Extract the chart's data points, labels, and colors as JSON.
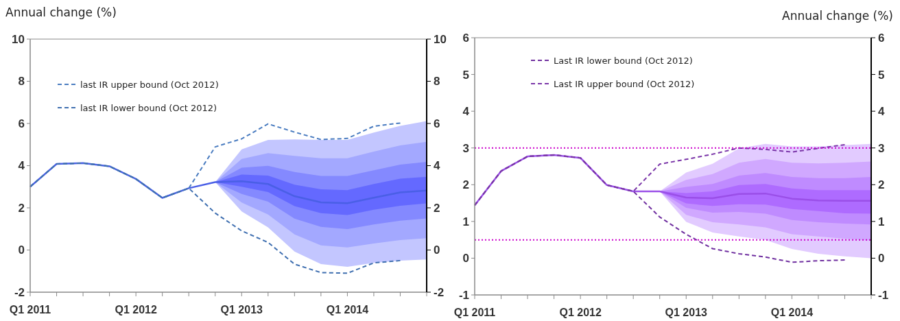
{
  "chart_data": [
    {
      "type": "line",
      "ylabel": "Annual change (%)",
      "categories": [
        "Q1 2011",
        null,
        null,
        null,
        "Q1 2012",
        null,
        null,
        null,
        "Q1 2013",
        null,
        null,
        null,
        "Q1 2014",
        null,
        null,
        null
      ],
      "ylim": [
        -2,
        10
      ],
      "yticks": [
        -2,
        0,
        2,
        4,
        6,
        8,
        10
      ],
      "y2lim": [
        -2,
        10
      ],
      "y2ticks": [
        -2,
        0,
        2,
        4,
        6,
        8,
        10
      ],
      "legend": "top left",
      "grid": false,
      "series": [
        {
          "type": "line",
          "color": "#c3c6ff",
          "values": [
            null,
            null,
            null,
            null,
            null,
            null,
            null,
            null,
            null,
            null,
            null,
            null,
            null,
            null,
            null,
            null
          ],
          "upper": [
            null,
            null,
            null,
            null,
            null,
            null,
            null,
            3.22,
            4.77,
            5.22,
            5.24,
            5.22,
            5.22,
            5.57,
            5.89,
            6.11
          ],
          "lower": [
            null,
            null,
            null,
            null,
            null,
            null,
            null,
            3.22,
            1.83,
            1.07,
            -0.07,
            -0.67,
            -0.8,
            -0.61,
            -0.5,
            -0.45
          ]
        },
        {
          "type": "line",
          "color": "#a3a8ff",
          "values": [
            null,
            null,
            null,
            null,
            null,
            null,
            null,
            null,
            null,
            null,
            null,
            null,
            null,
            null,
            null,
            null
          ],
          "upper": [
            null,
            null,
            null,
            null,
            null,
            null,
            null,
            3.22,
            4.32,
            4.59,
            4.46,
            4.35,
            4.35,
            4.67,
            4.96,
            5.13
          ],
          "lower": [
            null,
            null,
            null,
            null,
            null,
            null,
            null,
            3.22,
            2.25,
            1.68,
            0.74,
            0.22,
            0.12,
            0.31,
            0.47,
            0.56
          ]
        },
        {
          "type": "line",
          "color": "#8489ff",
          "values": [
            null,
            null,
            null,
            null,
            null,
            null,
            null,
            null,
            null,
            null,
            null,
            null,
            null,
            null,
            null,
            null
          ],
          "upper": [
            null,
            null,
            null,
            null,
            null,
            null,
            null,
            3.22,
            3.9,
            3.99,
            3.7,
            3.51,
            3.51,
            3.78,
            4.05,
            4.18
          ],
          "lower": [
            null,
            null,
            null,
            null,
            null,
            null,
            null,
            3.22,
            2.66,
            2.29,
            1.49,
            1.1,
            0.99,
            1.21,
            1.39,
            1.5
          ]
        },
        {
          "type": "line",
          "color": "#6469ff",
          "values": [
            null,
            null,
            null,
            null,
            null,
            null,
            null,
            null,
            null,
            null,
            null,
            null,
            null,
            null,
            null,
            null
          ],
          "upper": [
            null,
            null,
            null,
            null,
            null,
            null,
            null,
            3.22,
            3.58,
            3.53,
            3.1,
            2.88,
            2.84,
            3.13,
            3.38,
            3.47
          ],
          "lower": [
            null,
            null,
            null,
            null,
            null,
            null,
            null,
            3.22,
            3.0,
            2.75,
            2.08,
            1.75,
            1.66,
            1.91,
            2.1,
            2.21
          ]
        },
        {
          "type": "line",
          "color": "#4a5fe6",
          "values": [
            3.0,
            4.08,
            4.12,
            3.97,
            3.37,
            2.47,
            2.93,
            3.22,
            3.26,
            3.13,
            2.55,
            2.26,
            2.22,
            2.48,
            2.73,
            2.82
          ]
        },
        {
          "type": "line",
          "name": "last IR upper bound (Oct 2012)",
          "color": "#4a7cc0",
          "line_style": "dashed",
          "values": [
            3.0,
            4.08,
            4.12,
            3.97,
            3.37,
            2.47,
            2.93,
            4.89,
            5.27,
            5.98,
            5.59,
            5.24,
            5.29,
            5.87,
            6.02,
            null
          ]
        },
        {
          "type": "line",
          "name": "last IR lower bound (Oct 2012)",
          "color": "#3f6fb0",
          "line_style": "dashed",
          "values": [
            3.0,
            4.08,
            4.12,
            3.97,
            3.37,
            2.47,
            2.93,
            1.75,
            0.91,
            0.36,
            -0.67,
            -1.07,
            -1.1,
            -0.61,
            -0.5,
            null
          ]
        }
      ]
    },
    {
      "type": "line",
      "y2label": "Annual change (%)",
      "categories": [
        "Q1 2011",
        null,
        null,
        null,
        "Q1 2012",
        null,
        null,
        null,
        "Q1 2013",
        null,
        null,
        null,
        "Q1 2014",
        null,
        null,
        null
      ],
      "ylim": [
        -1,
        6
      ],
      "yticks": [
        -1,
        0,
        1,
        2,
        3,
        4,
        5,
        6
      ],
      "y2lim": [
        -1,
        6
      ],
      "y2ticks": [
        -1,
        0,
        1,
        2,
        3,
        4,
        5,
        6
      ],
      "legend": "top left",
      "grid": false,
      "ref_lines": [
        {
          "axis": "y",
          "value": 3,
          "color": "#cc00cc",
          "line_style": "dotted"
        },
        {
          "axis": "y",
          "value": 0.5,
          "color": "#cc00cc",
          "line_style": "dotted"
        }
      ],
      "series": [
        {
          "type": "line",
          "color": "#e2cbff",
          "values": [
            null,
            null,
            null,
            null,
            null,
            null,
            null,
            null,
            null,
            null,
            null,
            null,
            null,
            null,
            null,
            null
          ],
          "upper": [
            null,
            null,
            null,
            null,
            null,
            null,
            null,
            1.82,
            2.33,
            2.57,
            2.99,
            3.11,
            3.04,
            3.04,
            3.08,
            3.11
          ],
          "lower": [
            null,
            null,
            null,
            null,
            null,
            null,
            null,
            1.82,
            0.99,
            0.7,
            0.59,
            0.5,
            0.25,
            0.12,
            0.05,
            0.0
          ]
        },
        {
          "type": "line",
          "color": "#d0a8ff",
          "values": [
            null,
            null,
            null,
            null,
            null,
            null,
            null,
            null,
            null,
            null,
            null,
            null,
            null,
            null,
            null,
            null
          ],
          "upper": [
            null,
            null,
            null,
            null,
            null,
            null,
            null,
            1.82,
            2.13,
            2.29,
            2.6,
            2.7,
            2.6,
            2.58,
            2.6,
            2.63
          ],
          "lower": [
            null,
            null,
            null,
            null,
            null,
            null,
            null,
            1.82,
            1.18,
            0.98,
            0.92,
            0.84,
            0.65,
            0.59,
            0.53,
            0.48
          ]
        },
        {
          "type": "line",
          "color": "#bf8bff",
          "values": [
            null,
            null,
            null,
            null,
            null,
            null,
            null,
            null,
            null,
            null,
            null,
            null,
            null,
            null,
            null,
            null
          ],
          "upper": [
            null,
            null,
            null,
            null,
            null,
            null,
            null,
            1.82,
            1.94,
            2.02,
            2.25,
            2.32,
            2.21,
            2.18,
            2.18,
            2.21
          ],
          "lower": [
            null,
            null,
            null,
            null,
            null,
            null,
            null,
            1.82,
            1.37,
            1.24,
            1.26,
            1.21,
            1.04,
            0.98,
            0.94,
            0.92
          ]
        },
        {
          "type": "line",
          "color": "#ae6bff",
          "values": [
            null,
            null,
            null,
            null,
            null,
            null,
            null,
            null,
            null,
            null,
            null,
            null,
            null,
            null,
            null,
            null
          ],
          "upper": [
            null,
            null,
            null,
            null,
            null,
            null,
            null,
            1.82,
            1.77,
            1.82,
            1.99,
            2.02,
            1.9,
            1.85,
            1.85,
            1.85
          ],
          "lower": [
            null,
            null,
            null,
            null,
            null,
            null,
            null,
            1.82,
            1.49,
            1.42,
            1.47,
            1.46,
            1.34,
            1.28,
            1.22,
            1.21
          ]
        },
        {
          "type": "line",
          "color": "#9a4fe8",
          "values": [
            1.44,
            2.37,
            2.77,
            2.81,
            2.73,
            1.99,
            1.82,
            1.82,
            1.65,
            1.63,
            1.75,
            1.76,
            1.62,
            1.57,
            1.56,
            1.56
          ]
        },
        {
          "type": "line",
          "name": "Last IR lower bound (Oct 2012)",
          "color": "#7030a0",
          "line_style": "dashed",
          "values": [
            1.44,
            2.37,
            2.77,
            2.81,
            2.73,
            1.99,
            1.82,
            1.12,
            0.65,
            0.26,
            0.12,
            0.03,
            -0.11,
            -0.07,
            -0.05,
            null
          ]
        },
        {
          "type": "line",
          "name": "Last IR upper bound (Oct 2012)",
          "color": "#7a35a8",
          "line_style": "dashed",
          "values": [
            1.44,
            2.37,
            2.77,
            2.81,
            2.73,
            1.99,
            1.82,
            2.56,
            2.69,
            2.83,
            3.0,
            2.96,
            2.89,
            2.99,
            3.09,
            null
          ]
        }
      ]
    }
  ]
}
